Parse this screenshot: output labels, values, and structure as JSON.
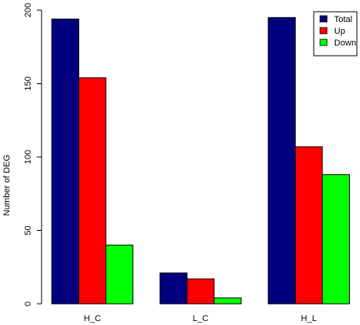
{
  "chart_data": {
    "type": "bar",
    "categories": [
      "H_C",
      "L_C",
      "H_L"
    ],
    "series": [
      {
        "name": "Total",
        "color": "#00007f",
        "values": [
          194,
          21,
          195
        ]
      },
      {
        "name": "Up",
        "color": "#ff0000",
        "values": [
          154,
          17,
          107
        ]
      },
      {
        "name": "Down",
        "color": "#00ff00",
        "values": [
          40,
          4,
          88
        ]
      }
    ],
    "ylabel": "Number of DEG",
    "ylim": [
      0,
      200
    ],
    "yticks": [
      0,
      50,
      100,
      150,
      200
    ],
    "grid": false,
    "legend_position": "top-right"
  }
}
